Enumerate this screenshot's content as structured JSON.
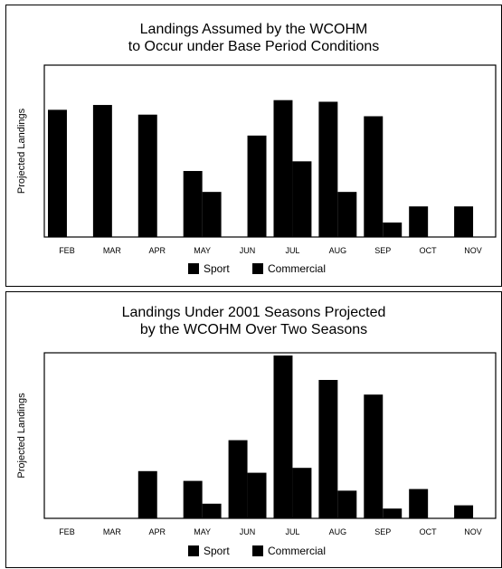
{
  "chart_data": [
    {
      "type": "bar",
      "title_lines": [
        "Landings Assumed by the WCOHM",
        "to Occur under Base Period Conditions"
      ],
      "xlabel": "",
      "ylabel": "Projected Landings",
      "categories": [
        "FEB",
        "MAR",
        "APR",
        "MAY",
        "JUN",
        "JUL",
        "AUG",
        "SEP",
        "OCT",
        "NOV"
      ],
      "ylim": [
        0,
        100
      ],
      "y_ticks_shown": false,
      "grid": false,
      "legend_position": "bottom-center",
      "series": [
        {
          "name": "Sport",
          "color": "#000000",
          "values": [
            79,
            82,
            76,
            41,
            null,
            85,
            84,
            75,
            19,
            19
          ]
        },
        {
          "name": "Commercial",
          "color": "#000000",
          "values": [
            null,
            null,
            null,
            28,
            63,
            47,
            28,
            9,
            null,
            null
          ]
        }
      ]
    },
    {
      "type": "bar",
      "title_lines": [
        "Landings Under 2001 Seasons Projected",
        "by the WCOHM Over Two Seasons"
      ],
      "xlabel": "",
      "ylabel": "Projected Landings",
      "categories": [
        "FEB",
        "MAR",
        "APR",
        "MAY",
        "JUN",
        "JUL",
        "AUG",
        "SEP",
        "OCT",
        "NOV"
      ],
      "ylim": [
        0,
        100
      ],
      "y_ticks_shown": false,
      "grid": false,
      "legend_position": "bottom-center",
      "series": [
        {
          "name": "Sport",
          "color": "#000000",
          "values": [
            0,
            0,
            29,
            23,
            48,
            100,
            85,
            76,
            18,
            8
          ]
        },
        {
          "name": "Commercial",
          "color": "#000000",
          "values": [
            0,
            0,
            0,
            9,
            28,
            31,
            17,
            6,
            0,
            0
          ]
        }
      ]
    }
  ]
}
